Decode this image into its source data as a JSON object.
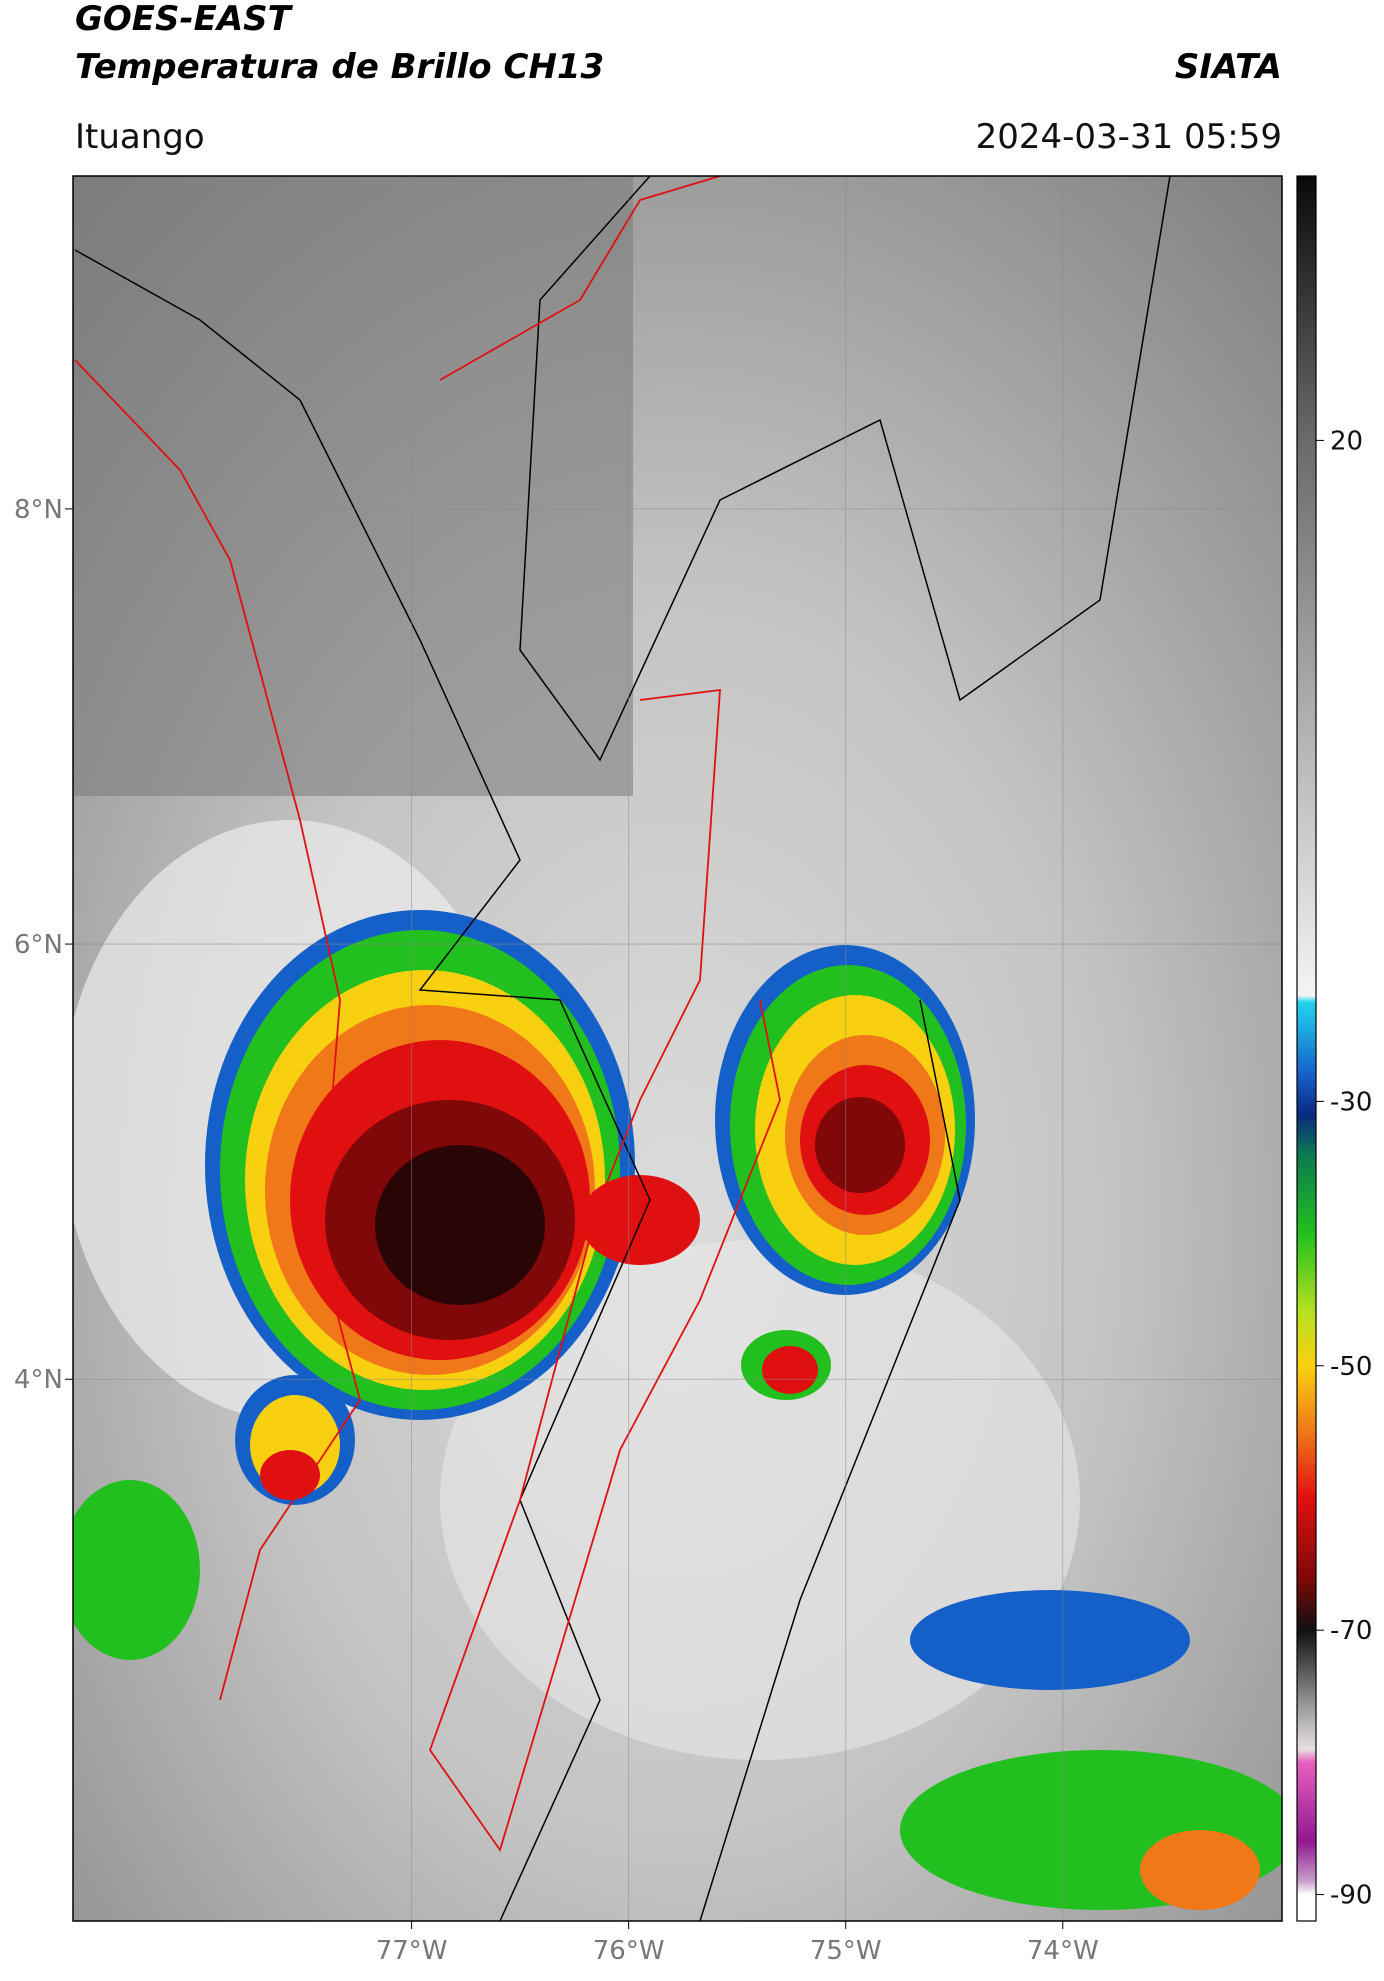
{
  "header": {
    "satellite": "GOES-EAST",
    "product": "Temperatura de Brillo CH13",
    "agency": "SIATA",
    "region": "Ituango",
    "datetime": "2024-03-31 05:59"
  },
  "map": {
    "lonlim": [
      -78.56,
      -72.99
    ],
    "latlim": [
      1.51,
      9.53
    ],
    "grid": true,
    "lat_ticks": [
      {
        "value": 8,
        "label": "8°N"
      },
      {
        "value": 6,
        "label": "6°N"
      },
      {
        "value": 4,
        "label": "4°N"
      }
    ],
    "lon_ticks": [
      {
        "value": -77,
        "label": "77°W"
      },
      {
        "value": -76,
        "label": "76°W"
      },
      {
        "value": -75,
        "label": "75°W"
      },
      {
        "value": -74,
        "label": "74°W"
      }
    ]
  },
  "colorbar": {
    "lim": [
      -92,
      40
    ],
    "ticks": [
      20,
      -30,
      -50,
      -70,
      -90
    ],
    "colormap": [
      {
        "value": 40,
        "color": "#0a0a0a"
      },
      {
        "value": 20,
        "color": "#6a6a6a"
      },
      {
        "value": -22,
        "color": "#f4f4f4"
      },
      {
        "value": -22.5,
        "color": "#22d4ee"
      },
      {
        "value": -28,
        "color": "#1560c8"
      },
      {
        "value": -31,
        "color": "#0a2a80"
      },
      {
        "value": -34,
        "color": "#0b7a50"
      },
      {
        "value": -40,
        "color": "#22c01e"
      },
      {
        "value": -46,
        "color": "#b8e020"
      },
      {
        "value": -50,
        "color": "#f8d010"
      },
      {
        "value": -55,
        "color": "#f07818"
      },
      {
        "value": -60,
        "color": "#e01010"
      },
      {
        "value": -66,
        "color": "#800808"
      },
      {
        "value": -70,
        "color": "#101010"
      },
      {
        "value": -76,
        "color": "#a0a0a0"
      },
      {
        "value": -79,
        "color": "#e8e0e0"
      },
      {
        "value": -80,
        "color": "#e860c0"
      },
      {
        "value": -86,
        "color": "#901890"
      },
      {
        "value": -89,
        "color": "#c8a0c8"
      },
      {
        "value": -90,
        "color": "#ffffff"
      }
    ]
  }
}
